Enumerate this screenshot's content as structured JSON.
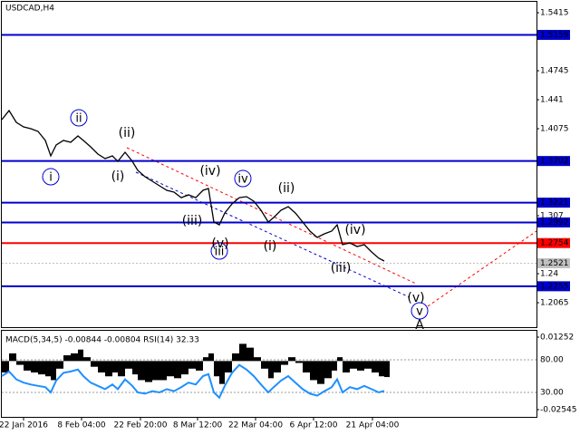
{
  "chart_data": [
    {
      "type": "price",
      "title": "USDCAD,H4",
      "x": [
        0,
        2,
        4,
        6,
        8,
        10,
        12,
        13.5,
        15,
        17,
        19,
        21,
        22.5,
        24.5,
        26.5,
        28.5,
        30.5,
        32,
        34,
        36,
        37.5,
        39.5,
        41.5,
        43.5,
        45.5,
        47.5,
        49.5,
        51.5,
        53.5,
        55.5,
        57,
        58.5,
        60,
        61.5,
        63.5,
        65.5,
        67.5,
        69.5,
        71.5,
        73.5,
        75,
        77,
        79,
        81,
        83,
        85,
        87,
        89,
        91,
        92.5,
        94,
        96,
        98,
        100,
        102,
        104,
        105.5
      ],
      "values": [
        1.418,
        1.4285,
        1.4149,
        1.4096,
        1.4075,
        1.4044,
        1.3939,
        1.3761,
        1.3887,
        1.3939,
        1.3918,
        1.3992,
        1.3939,
        1.3866,
        1.3782,
        1.373,
        1.3761,
        1.3698,
        1.3803,
        1.3698,
        1.3594,
        1.352,
        1.3468,
        1.3416,
        1.3363,
        1.3342,
        1.3279,
        1.3311,
        1.3279,
        1.3363,
        1.3384,
        1.2997,
        1.2965,
        1.3101,
        1.3206,
        1.3279,
        1.329,
        1.3238,
        1.3133,
        1.2997,
        1.3049,
        1.3133,
        1.3175,
        1.3101,
        1.2997,
        1.2892,
        1.2819,
        1.2861,
        1.2892,
        1.2965,
        1.2735,
        1.2756,
        1.2714,
        1.2735,
        1.2651,
        1.2578,
        1.2547
      ],
      "color": "#000000",
      "xlim": [
        0,
        147.5
      ],
      "ylim": [
        1.1772,
        1.5562
      ],
      "yticks": [
        1.5415,
        1.4745,
        1.441,
        1.4075,
        1.307,
        1.24,
        1.2065
      ],
      "xticks": [
        {
          "value": 6,
          "label": "22 Jan 2016"
        },
        {
          "value": 22,
          "label": "8 Feb 04:00"
        },
        {
          "value": 38.25,
          "label": "22 Feb 20:00"
        },
        {
          "value": 54,
          "label": "8 Mar 12:00"
        },
        {
          "value": 70,
          "label": "22 Mar 04:00"
        },
        {
          "value": 86,
          "label": "6 Apr 12:00"
        },
        {
          "value": 102.25,
          "label": "21 Apr 04:00"
        }
      ],
      "levels": [
        {
          "value": 1.5159,
          "color": "#0000cd"
        },
        {
          "value": 1.3702,
          "color": "#0000cd"
        },
        {
          "value": 1.3221,
          "color": "#0000cd"
        },
        {
          "value": 1.2992,
          "color": "#0000cd"
        },
        {
          "value": 1.2754,
          "color": "#ff0000"
        },
        {
          "value": 1.2255,
          "color": "#0000cd"
        }
      ],
      "current": {
        "value": 1.2521,
        "color": "#c0c0c0"
      },
      "annotations": [
        {
          "text": "i",
          "x": 13.5,
          "y": 1.352,
          "color": "#0000cd",
          "circled": true
        },
        {
          "text": "ii",
          "x": 21.25,
          "y": 1.4201,
          "color": "#0000cd",
          "circled": true
        },
        {
          "text": "iii",
          "x": 60,
          "y": 1.2662,
          "color": "#0000cd",
          "circled": true
        },
        {
          "text": "iv",
          "x": 66.5,
          "y": 1.3499,
          "color": "#0000cd",
          "circled": true
        },
        {
          "text": "v",
          "x": 115.25,
          "y": 1.1971,
          "color": "#0000cd",
          "circled": true
        },
        {
          "text": "(ii)",
          "x": 34.5,
          "y": 1.4033,
          "color": "#ff0000",
          "circled": false
        },
        {
          "text": "(i)",
          "x": 32,
          "y": 1.3531,
          "color": "#ff0000",
          "circled": false
        },
        {
          "text": "(iv)",
          "x": 57.5,
          "y": 1.3594,
          "color": "#ff0000",
          "circled": false
        },
        {
          "text": "(iii)",
          "x": 52.5,
          "y": 1.3018,
          "color": "#ff0000",
          "circled": false
        },
        {
          "text": "(v)",
          "x": 60.25,
          "y": 1.2756,
          "color": "#ff0000",
          "circled": false
        },
        {
          "text": "(ii)",
          "x": 78.5,
          "y": 1.3395,
          "color": "#ff0000",
          "circled": false
        },
        {
          "text": "(i)",
          "x": 74,
          "y": 1.2725,
          "color": "#ff0000",
          "circled": false
        },
        {
          "text": "(iv)",
          "x": 97.5,
          "y": 1.2913,
          "color": "#ff0000",
          "circled": false
        },
        {
          "text": "(iii)",
          "x": 93.5,
          "y": 1.2473,
          "color": "#ff0000",
          "circled": false
        },
        {
          "text": "(v)",
          "x": 114.25,
          "y": 1.2128,
          "color": "#ff0000",
          "circled": false
        },
        {
          "text": "A",
          "x": 115.25,
          "y": 1.1814,
          "color": "#ff0000",
          "circled": false
        }
      ]
    },
    {
      "type": "macd",
      "title": "MACD(5,34,5) -0.00844 -0.00804 RSI(14) 32.33",
      "x": [
        0,
        2,
        4,
        6,
        8,
        10,
        12,
        13.5,
        15,
        17,
        19,
        21,
        22.5,
        24.5,
        26.5,
        28.5,
        30.5,
        32,
        34,
        36,
        37.5,
        39.5,
        41.5,
        43.5,
        45.5,
        47.5,
        49.5,
        51.5,
        53.5,
        55.5,
        57,
        58.5,
        60,
        61.5,
        63.5,
        65.5,
        67.5,
        69.5,
        71.5,
        73.5,
        75,
        77,
        79,
        81,
        83,
        85,
        87,
        89,
        91,
        92.5,
        94,
        96,
        98,
        100,
        102,
        104,
        105.5
      ],
      "values": [
        -0.006,
        0.004,
        -0.002,
        -0.005,
        -0.006,
        -0.007,
        -0.008,
        -0.01,
        -0.004,
        0.003,
        0.004,
        0.006,
        0.002,
        -0.003,
        -0.006,
        -0.008,
        -0.006,
        -0.008,
        -0.004,
        -0.007,
        -0.01,
        -0.011,
        -0.01,
        -0.01,
        -0.008,
        -0.009,
        -0.007,
        -0.004,
        -0.005,
        0.002,
        0.004,
        -0.008,
        -0.012,
        -0.006,
        0.004,
        0.009,
        0.007,
        0.002,
        -0.004,
        -0.009,
        -0.006,
        -0.002,
        0.002,
        -0.001,
        -0.006,
        -0.01,
        -0.012,
        -0.009,
        -0.005,
        0.002,
        -0.006,
        -0.004,
        -0.005,
        -0.004,
        -0.006,
        -0.008,
        -0.0084
      ],
      "color": "#000000",
      "rsi": {
        "color": "#1e90ff",
        "axis": "y2",
        "values": [
          55,
          62,
          50,
          45,
          42,
          40,
          38,
          30,
          48,
          60,
          62,
          65,
          55,
          45,
          40,
          35,
          42,
          35,
          50,
          40,
          30,
          28,
          32,
          30,
          35,
          32,
          38,
          45,
          42,
          55,
          58,
          30,
          22,
          40,
          60,
          72,
          65,
          55,
          42,
          30,
          38,
          48,
          55,
          45,
          35,
          28,
          25,
          32,
          38,
          50,
          30,
          38,
          35,
          40,
          35,
          30,
          32.33
        ]
      },
      "xlim": [
        0,
        147.5
      ],
      "ylim": [
        -0.02925,
        0.01584
      ],
      "yticks": [
        0.01252,
        -0.02545
      ],
      "y2lim": [
        -7.5,
        124.4
      ],
      "y2ticks": [
        {
          "value": 80,
          "label": "80.00"
        },
        {
          "value": 30,
          "label": "30.00"
        }
      ]
    }
  ]
}
